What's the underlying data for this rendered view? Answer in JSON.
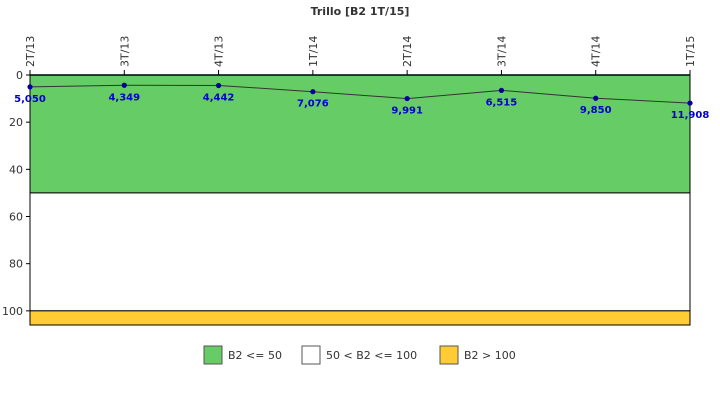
{
  "chart_data": {
    "type": "line",
    "title": "Trillo [B2 1T/15]",
    "categories": [
      "2T/13",
      "3T/13",
      "4T/13",
      "1T/14",
      "2T/14",
      "3T/14",
      "4T/14",
      "1T/15"
    ],
    "values": [
      5.05,
      4.349,
      4.442,
      7.076,
      9.991,
      6.515,
      9.85,
      11.908
    ],
    "value_labels": [
      "5,050",
      "4,349",
      "4,442",
      "7,076",
      "9,991",
      "6,515",
      "9,850",
      "11,908"
    ],
    "y_axis": {
      "inverted": true,
      "ylim": [
        0,
        106
      ],
      "ticks": [
        0,
        20,
        40,
        60,
        80,
        100
      ]
    },
    "bands": [
      {
        "from": 0,
        "to": 50,
        "color": "#66cc66",
        "legend": "B2 <= 50"
      },
      {
        "from": 50,
        "to": 100,
        "color": "#ffffff",
        "legend": "50 < B2 <= 100"
      },
      {
        "from": 100,
        "to": 106,
        "color": "#ffcc33",
        "legend": "B2 > 100"
      }
    ],
    "line_color": "#333333",
    "marker_color": "#000099",
    "label_color": "#0000cc",
    "legend_position": "bottom"
  }
}
